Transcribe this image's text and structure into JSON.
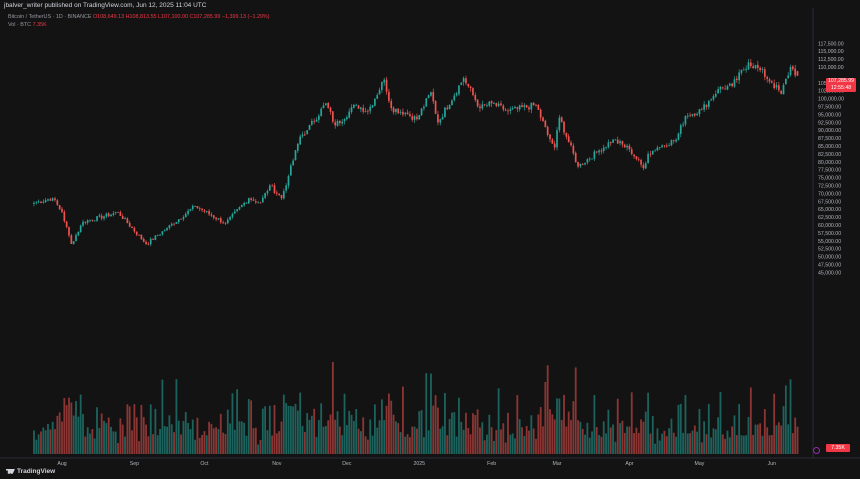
{
  "header": {
    "publisher": "jbalver_writer published on TradingView.com, Jun 12, 2025 11:04 UTC",
    "symbol": "Bitcoin / TetherUS · 1D · BINANCE",
    "ohlc": "O108,649.13 H108,813.55 L107,100.00 C107,285.99 −1,399.13 (−1.29%)",
    "vol_label": "Vol · BTC",
    "vol_value": "7.35K"
  },
  "price_tag": {
    "price": "107,285.99",
    "countdown": "12:55:48"
  },
  "volume_tag": "7.35K",
  "logo_text": "TradingView",
  "colors": {
    "up": "#26a69a",
    "down": "#ef5350",
    "background": "#131313",
    "price_tag": "#f23645"
  },
  "chart_data": {
    "type": "candlestick",
    "title": "Bitcoin / TetherUS · 1D · BINANCE",
    "y_axis": {
      "ticks": [
        "117,500.00",
        "115,000.00",
        "112,500.00",
        "110,000.00",
        "105,000.00",
        "102,500.00",
        "100,000.00",
        "97,500.00",
        "95,000.00",
        "92,500.00",
        "90,000.00",
        "87,500.00",
        "85,000.00",
        "82,500.00",
        "80,000.00",
        "77,500.00",
        "75,000.00",
        "72,500.00",
        "70,000.00",
        "67,500.00",
        "65,000.00",
        "62,500.00",
        "60,000.00",
        "57,500.00",
        "55,000.00",
        "52,500.00",
        "50,000.00",
        "47,500.00",
        "45,000.00"
      ],
      "range": [
        45000,
        118500
      ]
    },
    "x_axis": {
      "labels": [
        "Aug",
        "Sep",
        "Oct",
        "Nov",
        "Dec",
        "2025",
        "Feb",
        "Mar",
        "Apr",
        "May",
        "Jun"
      ]
    },
    "anchors": [
      [
        "Jul 20",
        67000
      ],
      [
        "Jul 28",
        68500
      ],
      [
        "Aug 1",
        64000
      ],
      [
        "Aug 5",
        54000
      ],
      [
        "Aug 10",
        61000
      ],
      [
        "Aug 25",
        64000
      ],
      [
        "Sep 6",
        54000
      ],
      [
        "Sep 15",
        59000
      ],
      [
        "Sep 27",
        66000
      ],
      [
        "Oct 10",
        60500
      ],
      [
        "Oct 20",
        68500
      ],
      [
        "Oct 25",
        67000
      ],
      [
        "Oct 29",
        72500
      ],
      [
        "Nov 3",
        68500
      ],
      [
        "Nov 6",
        75500
      ],
      [
        "Nov 11",
        88000
      ],
      [
        "Nov 14",
        90000
      ],
      [
        "Nov 22",
        98500
      ],
      [
        "Nov 26",
        91500
      ],
      [
        "Dec 5",
        98000
      ],
      [
        "Dec 10",
        96000
      ],
      [
        "Dec 17",
        106000
      ],
      [
        "Dec 20",
        97000
      ],
      [
        "Dec 26",
        95500
      ],
      [
        "Dec 31",
        93500
      ],
      [
        "Jan 6",
        102000
      ],
      [
        "Jan 9",
        92500
      ],
      [
        "Jan 20",
        106500
      ],
      [
        "Jan 27",
        97000
      ],
      [
        "Feb 1",
        98500
      ],
      [
        "Feb 8",
        96000
      ],
      [
        "Feb 20",
        98000
      ],
      [
        "Feb 25",
        88500
      ],
      [
        "Feb 28",
        84500
      ],
      [
        "Mar 2",
        94000
      ],
      [
        "Mar 10",
        78500
      ],
      [
        "Mar 18",
        83000
      ],
      [
        "Mar 25",
        87000
      ],
      [
        "Apr 1",
        84000
      ],
      [
        "Apr 7",
        78000
      ],
      [
        "Apr 9",
        82500
      ],
      [
        "Apr 13",
        84500
      ],
      [
        "Apr 21",
        87000
      ],
      [
        "Apr 25",
        94500
      ],
      [
        "May 2",
        96500
      ],
      [
        "May 9",
        103000
      ],
      [
        "May 15",
        104000
      ],
      [
        "May 22",
        111500
      ],
      [
        "May 27",
        109000
      ],
      [
        "Jun 1",
        105000
      ],
      [
        "Jun 5",
        101500
      ],
      [
        "Jun 9",
        110000
      ],
      [
        "Jun 12",
        107285.99
      ]
    ],
    "last": {
      "open": 108649.13,
      "high": 108813.55,
      "low": 107100.0,
      "close": 107285.99
    },
    "grid": false,
    "legend": "top-left"
  }
}
